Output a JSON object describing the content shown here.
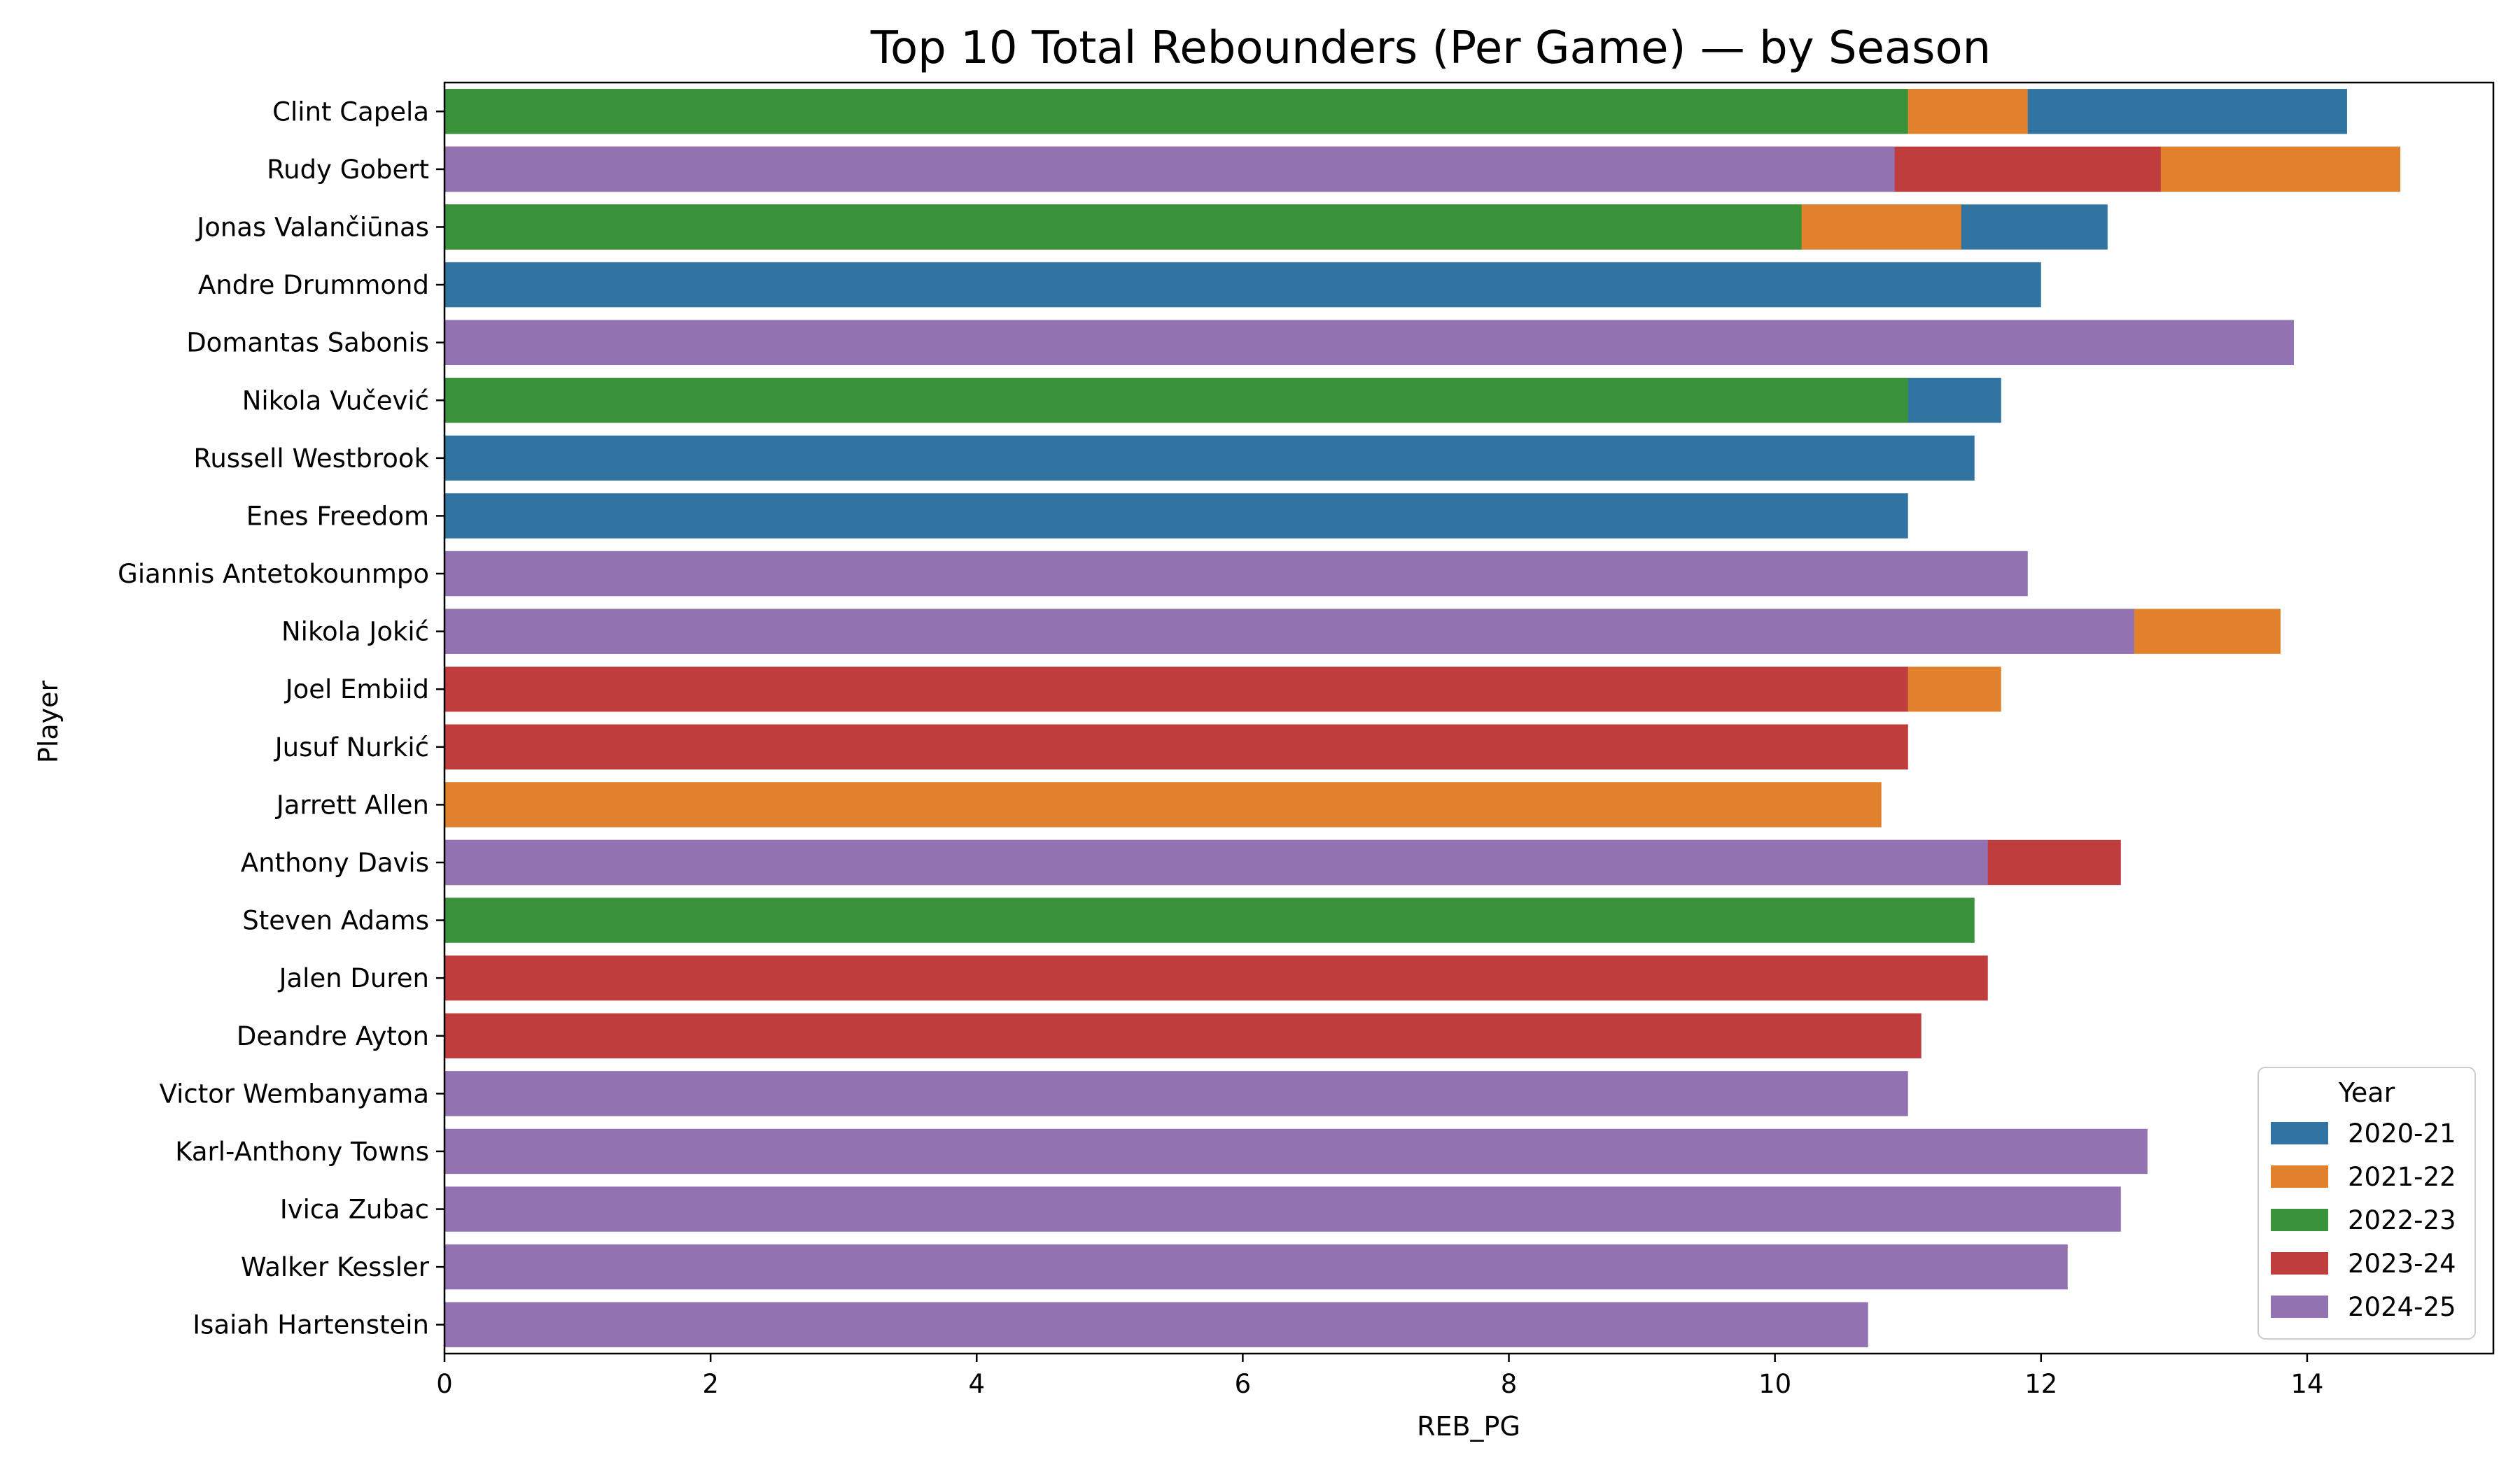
{
  "chart_data": {
    "type": "bar",
    "orientation": "horizontal",
    "overlay": true,
    "title": "Top 10 Total Rebounders (Per Game) — by Season",
    "xlabel": "REB_PG",
    "ylabel": "Player",
    "xlim": [
      0,
      15.4
    ],
    "xticks": [
      0,
      2,
      4,
      6,
      8,
      10,
      12,
      14
    ],
    "grid": false,
    "legend": {
      "title": "Year",
      "placement": "lower-right"
    },
    "categories": [
      "Clint Capela",
      "Rudy Gobert",
      "Jonas Valančiūnas",
      "Andre Drummond",
      "Domantas Sabonis",
      "Nikola Vučević",
      "Russell Westbrook",
      "Enes Freedom",
      "Giannis Antetokounmpo",
      "Nikola Jokić",
      "Joel Embiid",
      "Jusuf Nurkić",
      "Jarrett Allen",
      "Anthony Davis",
      "Steven Adams",
      "Jalen Duren",
      "Deandre Ayton",
      "Victor Wembanyama",
      "Karl-Anthony Towns",
      "Ivica Zubac",
      "Walker Kessler",
      "Isaiah Hartenstein"
    ],
    "series": [
      {
        "name": "2020-21",
        "color": "#3274a1",
        "values": [
          14.3,
          14.7,
          12.5,
          12.0,
          13.9,
          11.7,
          11.5,
          11.0,
          null,
          null,
          null,
          null,
          null,
          null,
          null,
          null,
          null,
          null,
          null,
          null,
          null,
          null
        ]
      },
      {
        "name": "2021-22",
        "color": "#e1812c",
        "values": [
          11.9,
          14.7,
          11.4,
          null,
          null,
          null,
          null,
          null,
          null,
          13.8,
          11.7,
          11.0,
          10.8,
          null,
          null,
          null,
          null,
          null,
          null,
          null,
          null,
          null
        ]
      },
      {
        "name": "2022-23",
        "color": "#3a923a",
        "values": [
          11.0,
          null,
          10.2,
          null,
          null,
          11.0,
          null,
          null,
          null,
          null,
          null,
          null,
          null,
          null,
          11.5,
          null,
          null,
          null,
          null,
          null,
          null,
          null
        ]
      },
      {
        "name": "2023-24",
        "color": "#c03d3e",
        "values": [
          null,
          12.9,
          null,
          null,
          null,
          null,
          null,
          null,
          null,
          null,
          11.0,
          11.0,
          null,
          12.6,
          null,
          11.6,
          11.1,
          null,
          null,
          null,
          null,
          null
        ]
      },
      {
        "name": "2024-25",
        "color": "#9372b2",
        "values": [
          null,
          10.9,
          null,
          null,
          13.9,
          null,
          null,
          null,
          11.9,
          12.7,
          null,
          null,
          null,
          11.6,
          null,
          null,
          null,
          11.0,
          12.8,
          12.6,
          12.2,
          10.7
        ]
      }
    ]
  }
}
